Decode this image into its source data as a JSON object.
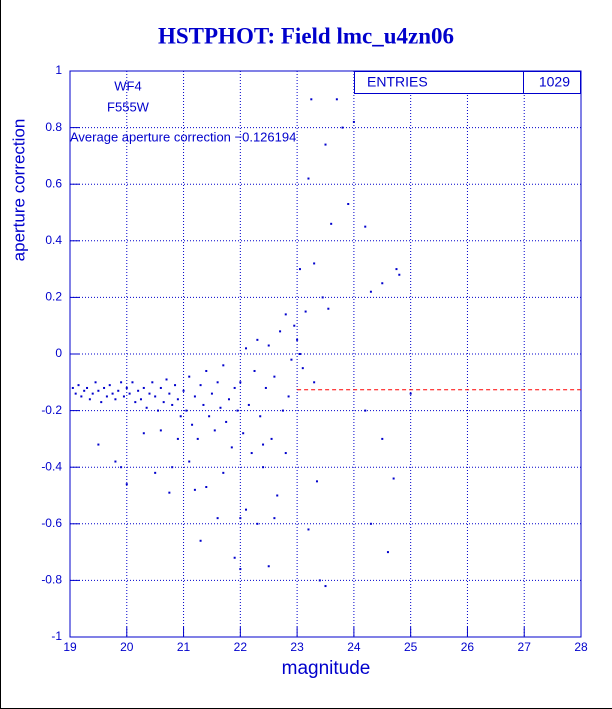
{
  "chart_data": {
    "type": "scatter",
    "title": "HSTPHOT: Field lmc_u4zn06",
    "x_label": "magnitude",
    "y_label": "aperture correction",
    "annotations": [
      "WF4",
      "F555W",
      "Average aperture correction −0.126194"
    ],
    "stats": {
      "label": "ENTRIES",
      "value": 1029
    },
    "reference_line": {
      "y": -0.126194,
      "x_start": 23,
      "color": "#ff0000"
    },
    "color": "#0000cc",
    "grid": true,
    "xlim": [
      19,
      28
    ],
    "xticks": [
      19,
      20,
      21,
      22,
      23,
      24,
      25,
      26,
      27,
      28
    ],
    "ylim": [
      -1,
      1
    ],
    "yticks": [
      -1,
      -0.8,
      -0.6,
      -0.4,
      -0.2,
      0,
      0.2,
      0.4,
      0.6,
      0.8,
      1
    ],
    "x": [
      19.05,
      19.1,
      19.15,
      19.2,
      19.25,
      19.3,
      19.35,
      19.4,
      19.45,
      19.5,
      19.55,
      19.6,
      19.65,
      19.7,
      19.75,
      19.8,
      19.85,
      19.9,
      19.95,
      20.0,
      19.5,
      19.8,
      19.9,
      20.0,
      20.05,
      20.1,
      20.15,
      20.2,
      20.25,
      20.3,
      20.35,
      20.4,
      20.45,
      20.5,
      20.55,
      20.6,
      20.65,
      20.7,
      20.75,
      20.8,
      20.85,
      20.9,
      20.95,
      20.3,
      20.6,
      20.8,
      20.75,
      20.5,
      20.9,
      21.0,
      21.05,
      21.1,
      21.15,
      21.2,
      21.25,
      21.3,
      21.35,
      21.4,
      21.45,
      21.5,
      21.55,
      21.6,
      21.65,
      21.7,
      21.75,
      21.8,
      21.85,
      21.9,
      21.95,
      21.2,
      21.4,
      21.6,
      21.3,
      21.1,
      21.7,
      21.9,
      22.0,
      22.05,
      22.1,
      22.15,
      22.2,
      22.25,
      22.3,
      22.35,
      22.4,
      22.45,
      22.5,
      22.55,
      22.6,
      22.65,
      22.7,
      22.75,
      22.8,
      22.85,
      22.9,
      22.95,
      22.0,
      22.1,
      22.3,
      22.5,
      22.6,
      22.0,
      22.4,
      22.8,
      23.0,
      23.05,
      23.1,
      23.15,
      23.2,
      23.25,
      23.3,
      23.35,
      23.45,
      23.5,
      23.55,
      23.6,
      23.7,
      23.4,
      23.5,
      23.8,
      23.9,
      23.2,
      23.3,
      23.05,
      24.0,
      24.2,
      24.3,
      24.5,
      24.75,
      24.8,
      24.3,
      24.6,
      24.7,
      24.5,
      25.0,
      24.2
    ],
    "values": [
      -0.12,
      -0.14,
      -0.11,
      -0.15,
      -0.13,
      -0.12,
      -0.16,
      -0.14,
      -0.1,
      -0.13,
      -0.17,
      -0.12,
      -0.15,
      -0.11,
      -0.14,
      -0.16,
      -0.13,
      -0.1,
      -0.15,
      -0.12,
      -0.32,
      -0.38,
      -0.4,
      -0.46,
      -0.14,
      -0.1,
      -0.17,
      -0.13,
      -0.16,
      -0.12,
      -0.19,
      -0.14,
      -0.1,
      -0.15,
      -0.2,
      -0.12,
      -0.17,
      -0.09,
      -0.14,
      -0.18,
      -0.11,
      -0.16,
      -0.22,
      -0.28,
      -0.27,
      -0.4,
      -0.49,
      -0.42,
      -0.3,
      -0.13,
      -0.2,
      -0.08,
      -0.25,
      -0.15,
      -0.3,
      -0.11,
      -0.18,
      -0.06,
      -0.22,
      -0.14,
      -0.27,
      -0.1,
      -0.19,
      -0.04,
      -0.24,
      -0.16,
      -0.33,
      -0.12,
      -0.2,
      -0.48,
      -0.47,
      -0.58,
      -0.66,
      -0.38,
      -0.42,
      -0.72,
      -0.1,
      -0.28,
      0.02,
      -0.18,
      -0.35,
      -0.06,
      0.05,
      -0.22,
      -0.4,
      -0.12,
      0.03,
      -0.3,
      -0.08,
      -0.5,
      0.08,
      -0.2,
      0.14,
      -0.15,
      -0.02,
      0.1,
      -0.58,
      -0.55,
      -0.6,
      -0.75,
      -0.58,
      -0.76,
      -0.32,
      -0.35,
      0.05,
      0.3,
      -0.05,
      0.15,
      0.62,
      0.9,
      0.32,
      -0.45,
      0.2,
      0.74,
      0.16,
      0.46,
      0.9,
      -0.8,
      -0.82,
      0.8,
      0.53,
      -0.62,
      -0.1,
      0.0,
      0.82,
      0.45,
      0.22,
      0.25,
      0.3,
      0.28,
      -0.6,
      -0.7,
      -0.44,
      -0.3,
      -0.14,
      -0.2
    ]
  }
}
